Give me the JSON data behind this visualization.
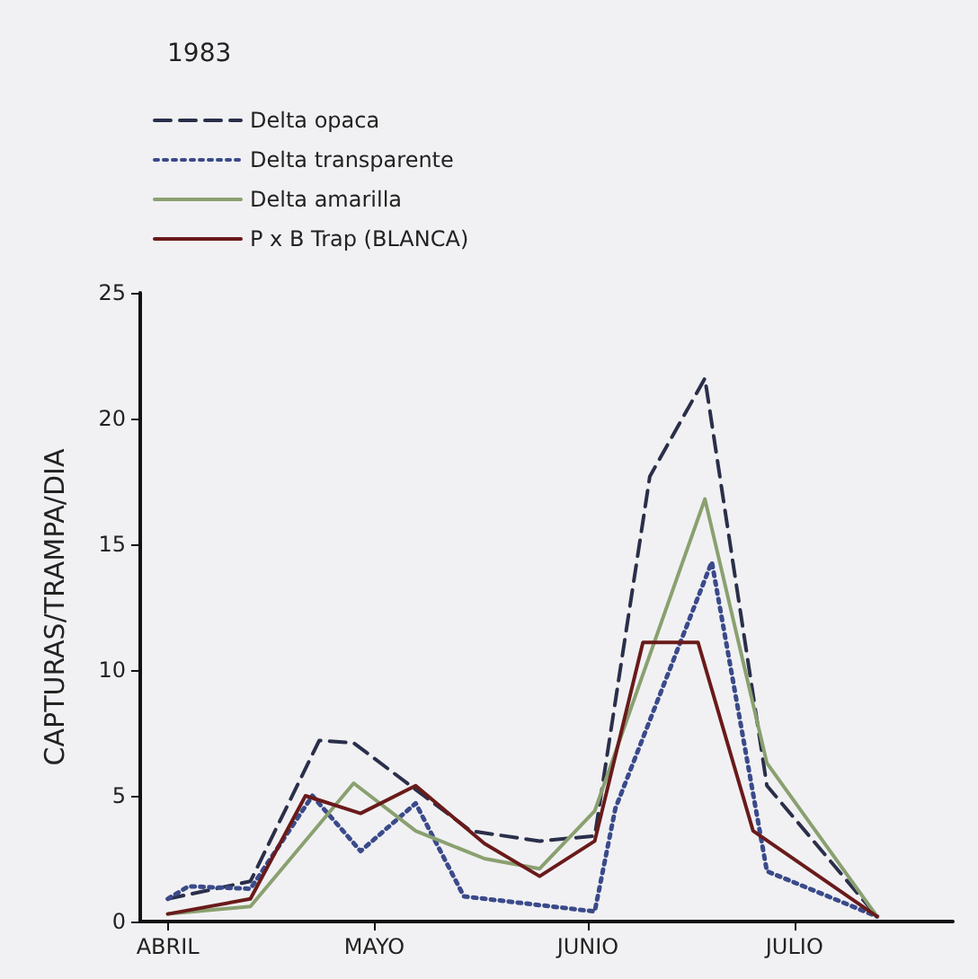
{
  "chart_data": {
    "type": "line",
    "title": "1983",
    "ylabel": "CAPTURAS/TRAMPA/DIA",
    "xlim": [
      "--03-28",
      "--07-24"
    ],
    "xticks": [
      {
        "value": "--04-01",
        "label": "ABRIL"
      },
      {
        "value": "--05-01",
        "label": "MAYO"
      },
      {
        "value": "--06-01",
        "label": "JUNIO"
      },
      {
        "value": "--07-01",
        "label": "JULIO"
      }
    ],
    "ylim": [
      0,
      25
    ],
    "yticks": [
      0,
      5,
      10,
      15,
      20,
      25
    ],
    "grid": false,
    "legend": "top left",
    "marker": "none",
    "series": [
      {
        "name": "Delta opaca",
        "color": "#2a2f4a",
        "line_style": "dashed",
        "x": [
          "--04-01",
          "--04-13",
          "--04-23",
          "--04-28",
          "--05-15",
          "--05-25",
          "--06-02",
          "--06-10",
          "--06-18",
          "--06-27",
          "--07-13"
        ],
        "values": [
          0.9,
          1.6,
          7.2,
          7.1,
          3.6,
          3.2,
          3.4,
          17.7,
          21.6,
          5.4,
          0.2
        ]
      },
      {
        "name": "Delta transparente",
        "color": "#3a4a8a",
        "line_style": "dotted",
        "x": [
          "--04-01",
          "--04-04",
          "--04-13",
          "--04-22",
          "--04-29",
          "--05-07",
          "--05-14",
          "--06-02",
          "--06-05",
          "--06-19",
          "--06-27",
          "--07-13"
        ],
        "values": [
          0.9,
          1.4,
          1.3,
          5.0,
          2.8,
          4.7,
          1.0,
          0.4,
          4.5,
          14.3,
          2.0,
          0.2
        ]
      },
      {
        "name": "Delta amarilla",
        "color": "#8aa070",
        "line_style": "solid",
        "x": [
          "--04-01",
          "--04-13",
          "--04-28",
          "--05-07",
          "--05-17",
          "--05-25",
          "--06-02",
          "--06-18",
          "--06-27",
          "--07-13"
        ],
        "values": [
          0.3,
          0.6,
          5.5,
          3.6,
          2.5,
          2.1,
          4.4,
          16.8,
          6.3,
          0.2
        ]
      },
      {
        "name": "P x B Trap (BLANCA)",
        "color": "#6a1a1a",
        "line_style": "solid",
        "x": [
          "--04-01",
          "--04-13",
          "--04-21",
          "--04-29",
          "--05-07",
          "--05-17",
          "--05-25",
          "--06-02",
          "--06-09",
          "--06-17",
          "--06-25",
          "--07-13"
        ],
        "values": [
          0.3,
          0.9,
          5.0,
          4.3,
          5.4,
          3.1,
          1.8,
          3.2,
          11.1,
          11.1,
          3.6,
          0.2
        ]
      }
    ]
  }
}
